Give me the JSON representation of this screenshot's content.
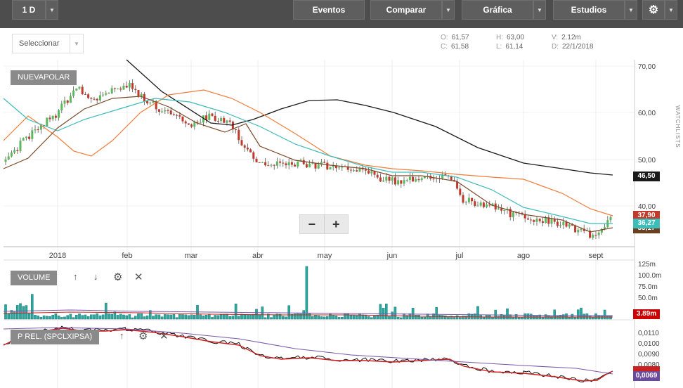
{
  "toolbar": {
    "interval": "1 D",
    "eventos": "Eventos",
    "comparar": "Comparar",
    "grafica": "Gráfica",
    "estudios": "Estudios"
  },
  "selector": {
    "label": "Seleccionar"
  },
  "ohlc": {
    "o_label": "O:",
    "o": "61,57",
    "h_label": "H:",
    "h": "63,00",
    "v_label": "V:",
    "v": "2.12m",
    "c_label": "C:",
    "c": "61,58",
    "l_label": "L:",
    "l": "61,14",
    "d_label": "D:",
    "d": "22/1/2018"
  },
  "main_label": "NUEVAPOLAR",
  "volume_label": "VOLUME",
  "prel_label": "P REL. (SPCLXIPSA)",
  "watchlist_label": "WATCHLISTS",
  "months": [
    "2018",
    "feb",
    "mar",
    "abr",
    "may",
    "jun",
    "jul",
    "ago",
    "sept"
  ],
  "price_axis": [
    "70,00",
    "60,00",
    "50,00",
    "40,00"
  ],
  "volume_axis": [
    "125m",
    "100.0m",
    "75.0m",
    "50.0m"
  ],
  "prel_axis": [
    "0,0110",
    "0,0100",
    "0,0090",
    "0,0080"
  ],
  "tags": {
    "ma_black": "46,50",
    "price": "37,90",
    "ma_cyan": "36,27",
    "ma_brown": "35,17",
    "volume": "3.89m",
    "prel_red": "",
    "prel_purple": "0,0069"
  },
  "colors": {
    "up": "#5cb85c",
    "down": "#c0392b",
    "ma_orange": "#f07d3a",
    "ma_cyan": "#3cbdb9",
    "ma_brown": "#7b4a2a",
    "ma_black": "#1a1a1a",
    "volume": "#2aa8a0",
    "prel_purple": "#7b57a8",
    "prel_red": "#cc1f1f"
  }
}
